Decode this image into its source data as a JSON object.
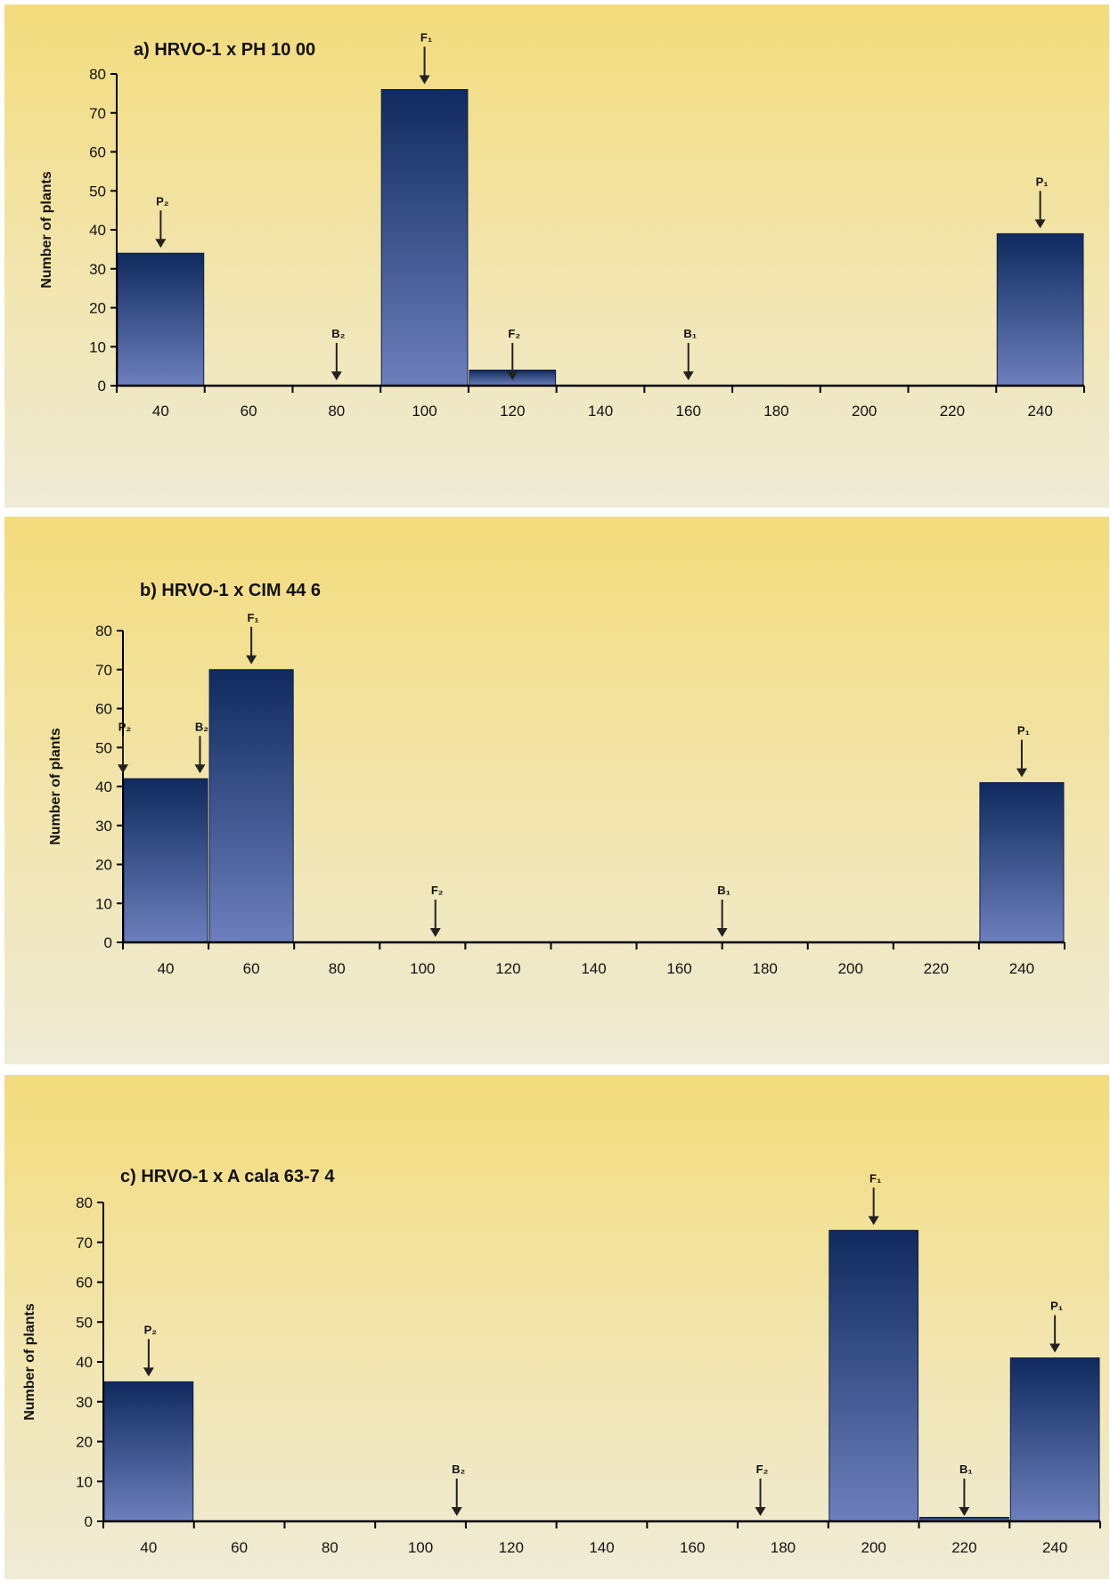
{
  "colors": {
    "bar_top": "#0f2a5e",
    "bar_bottom": "#6d7fbd",
    "axis": "#000000",
    "marker": "#222222"
  },
  "chart_data": [
    {
      "type": "bar",
      "title": "a) HRVO-1 x PH 10 00",
      "ylabel": "Number of plants",
      "xlabel": "",
      "categories": [
        "40",
        "60",
        "80",
        "100",
        "120",
        "140",
        "160",
        "180",
        "200",
        "220",
        "240"
      ],
      "values": [
        34,
        0,
        0,
        76,
        4,
        0,
        0,
        0,
        0,
        0,
        39
      ],
      "ylim": [
        0,
        80
      ],
      "yticks": [
        "0",
        "10",
        "20",
        "30",
        "40",
        "50",
        "60",
        "70",
        "80"
      ],
      "markers": [
        {
          "label": "P₂",
          "x": 40,
          "value": 34
        },
        {
          "label": "B₂",
          "x": 80,
          "value": 0
        },
        {
          "label": "F₁",
          "x": 100,
          "value": 76
        },
        {
          "label": "F₂",
          "x": 120,
          "value": 0
        },
        {
          "label": "B₁",
          "x": 160,
          "value": 0
        },
        {
          "label": "P₁",
          "x": 240,
          "value": 39
        }
      ]
    },
    {
      "type": "bar",
      "title": "b) HRVO-1 x CIM 44 6",
      "ylabel": "Number of plants",
      "xlabel": "",
      "categories": [
        "40",
        "60",
        "80",
        "100",
        "120",
        "140",
        "160",
        "180",
        "200",
        "220",
        "240"
      ],
      "values": [
        42,
        70,
        0,
        0,
        0,
        0,
        0,
        0,
        0,
        0,
        41
      ],
      "ylim": [
        0,
        80
      ],
      "yticks": [
        "0",
        "10",
        "20",
        "30",
        "40",
        "50",
        "60",
        "70",
        "80"
      ],
      "markers": [
        {
          "label": "P₂",
          "x": 30,
          "value": 42
        },
        {
          "label": "B₂",
          "x": 48,
          "value": 42
        },
        {
          "label": "F₁",
          "x": 60,
          "value": 70
        },
        {
          "label": "F₂",
          "x": 103,
          "value": 0
        },
        {
          "label": "B₁",
          "x": 170,
          "value": 0
        },
        {
          "label": "P₁",
          "x": 240,
          "value": 41
        }
      ]
    },
    {
      "type": "bar",
      "title": "c) HRVO-1 x A cala 63-7 4",
      "ylabel": "Number of plants",
      "xlabel": "",
      "categories": [
        "40",
        "60",
        "80",
        "100",
        "120",
        "140",
        "160",
        "180",
        "200",
        "220",
        "240"
      ],
      "values": [
        35,
        0,
        0,
        0,
        0,
        0,
        0,
        0,
        73,
        1,
        41
      ],
      "ylim": [
        0,
        80
      ],
      "yticks": [
        "0",
        "10",
        "20",
        "30",
        "40",
        "50",
        "60",
        "70",
        "80"
      ],
      "markers": [
        {
          "label": "P₂",
          "x": 40,
          "value": 35
        },
        {
          "label": "B₂",
          "x": 108,
          "value": 0
        },
        {
          "label": "F₂",
          "x": 175,
          "value": 0
        },
        {
          "label": "F₁",
          "x": 200,
          "value": 73
        },
        {
          "label": "B₁",
          "x": 220,
          "value": 0
        },
        {
          "label": "P₁",
          "x": 240,
          "value": 41
        }
      ]
    }
  ]
}
